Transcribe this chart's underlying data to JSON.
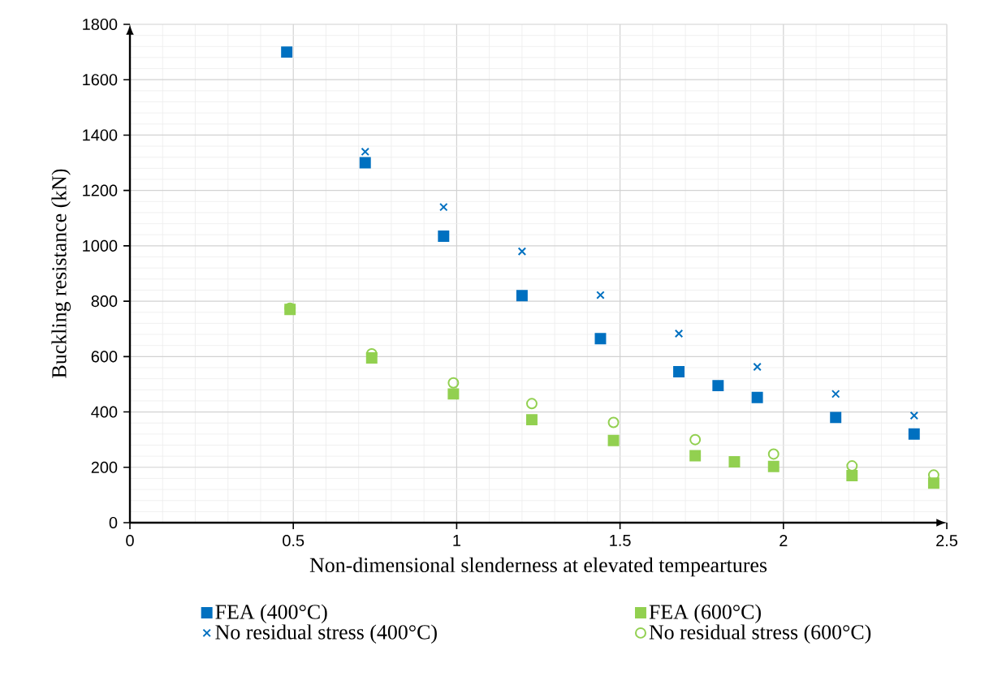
{
  "chart_data": {
    "type": "scatter",
    "xlabel": "Non-dimensional slenderness at elevated tempeartures",
    "ylabel": "Buckling resistance (kN)",
    "xlim": [
      0,
      2.5
    ],
    "ylim": [
      0,
      1800
    ],
    "xticks": [
      0,
      0.5,
      1,
      1.5,
      2,
      2.5
    ],
    "yticks": [
      0,
      200,
      400,
      600,
      800,
      1000,
      1200,
      1400,
      1600,
      1800
    ],
    "grid": true,
    "legend": "bottom",
    "series": [
      {
        "name": "FEA (400°C)",
        "color": "#0070c0",
        "marker": "square",
        "x": [
          0.48,
          0.72,
          0.96,
          1.2,
          1.44,
          1.68,
          1.8,
          1.92,
          2.16,
          2.4
        ],
        "values": [
          1700,
          1300,
          1035,
          820,
          665,
          545,
          495,
          452,
          380,
          320
        ]
      },
      {
        "name": "FEA (600°C)",
        "color": "#92d050",
        "marker": "square",
        "x": [
          0.49,
          0.74,
          0.99,
          1.23,
          1.48,
          1.73,
          1.85,
          1.97,
          2.21,
          2.46
        ],
        "values": [
          770,
          595,
          465,
          372,
          297,
          242,
          220,
          203,
          170,
          143
        ]
      },
      {
        "name": "No residual stress (400°C)",
        "color": "#0070c0",
        "marker": "cross",
        "x": [
          0.72,
          0.96,
          1.2,
          1.44,
          1.68,
          1.92,
          2.16,
          2.4
        ],
        "values": [
          1340,
          1140,
          980,
          822,
          683,
          563,
          465,
          387
        ]
      },
      {
        "name": "No residual stress (600°C)",
        "color": "#92d050",
        "marker": "circle",
        "x": [
          0.49,
          0.74,
          0.99,
          1.23,
          1.48,
          1.73,
          1.97,
          2.21,
          2.46
        ],
        "values": [
          775,
          610,
          505,
          430,
          362,
          300,
          248,
          205,
          172
        ]
      }
    ]
  }
}
